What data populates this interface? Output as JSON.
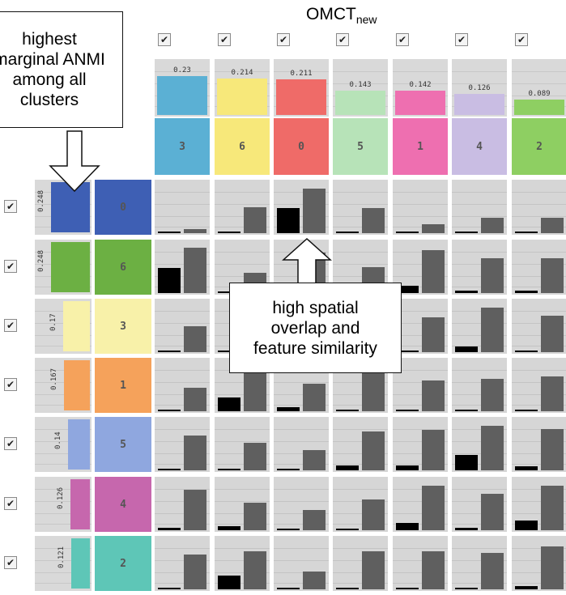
{
  "title": {
    "main": "OMCT",
    "sub": "new"
  },
  "checkbox_mark": "✔",
  "callouts": {
    "anmi": [
      "highest",
      "marginal ANMI",
      "among all",
      "clusters"
    ],
    "overlap": [
      "high spatial",
      "overlap and",
      "feature similarity"
    ]
  },
  "columns": [
    {
      "id": "3",
      "value": "0.23",
      "color": "#5bb0d4"
    },
    {
      "id": "6",
      "value": "0.214",
      "color": "#f7e87a"
    },
    {
      "id": "0",
      "value": "0.211",
      "color": "#ef6b68"
    },
    {
      "id": "5",
      "value": "0.143",
      "color": "#b7e3b8"
    },
    {
      "id": "1",
      "value": "0.142",
      "color": "#ee6fb0"
    },
    {
      "id": "4",
      "value": "0.126",
      "color": "#c9bde3"
    },
    {
      "id": "2",
      "value": "0.089",
      "color": "#8ecf62"
    }
  ],
  "rows": [
    {
      "id": "0",
      "value": "0.248",
      "color": "#3e5fb4"
    },
    {
      "id": "6",
      "value": "0.248",
      "color": "#6cb043"
    },
    {
      "id": "3",
      "value": "0.17",
      "color": "#f8f1a9"
    },
    {
      "id": "1",
      "value": "0.167",
      "color": "#f5a25b"
    },
    {
      "id": "5",
      "value": "0.14",
      "color": "#8fa7df"
    },
    {
      "id": "4",
      "value": "0.126",
      "color": "#c667ad"
    },
    {
      "id": "2",
      "value": "0.121",
      "color": "#5ec6b7"
    }
  ],
  "matrix": {
    "black": [
      [
        0.02,
        0.02,
        0.5,
        0.02,
        0.0,
        0.02,
        0.02
      ],
      [
        0.5,
        0.02,
        0.0,
        0.0,
        0.15,
        0.05,
        0.05
      ],
      [
        0.0,
        0.0,
        0.0,
        0.0,
        0.0,
        0.12,
        0.03
      ],
      [
        0.0,
        0.28,
        0.08,
        0.02,
        0.0,
        0.0,
        0.02
      ],
      [
        0.02,
        0.02,
        0.02,
        0.1,
        0.1,
        0.3,
        0.08
      ],
      [
        0.05,
        0.08,
        0.0,
        0.03,
        0.15,
        0.05,
        0.2
      ],
      [
        0.0,
        0.28,
        0.0,
        0.02,
        0.02,
        0.02,
        0.07
      ]
    ],
    "gray": [
      [
        0.08,
        0.52,
        0.88,
        0.5,
        0.18,
        0.3,
        0.3
      ],
      [
        0.9,
        0.4,
        0.8,
        0.52,
        0.85,
        0.7,
        0.7
      ],
      [
        0.52,
        0.15,
        0.15,
        0.85,
        0.7,
        0.88,
        0.72
      ],
      [
        0.47,
        0.85,
        0.55,
        0.82,
        0.62,
        0.65,
        0.7
      ],
      [
        0.7,
        0.55,
        0.4,
        0.78,
        0.8,
        0.88,
        0.82
      ],
      [
        0.8,
        0.55,
        0.4,
        0.62,
        0.88,
        0.72,
        0.88
      ],
      [
        0.7,
        0.75,
        0.35,
        0.75,
        0.75,
        0.72,
        0.85
      ]
    ]
  }
}
